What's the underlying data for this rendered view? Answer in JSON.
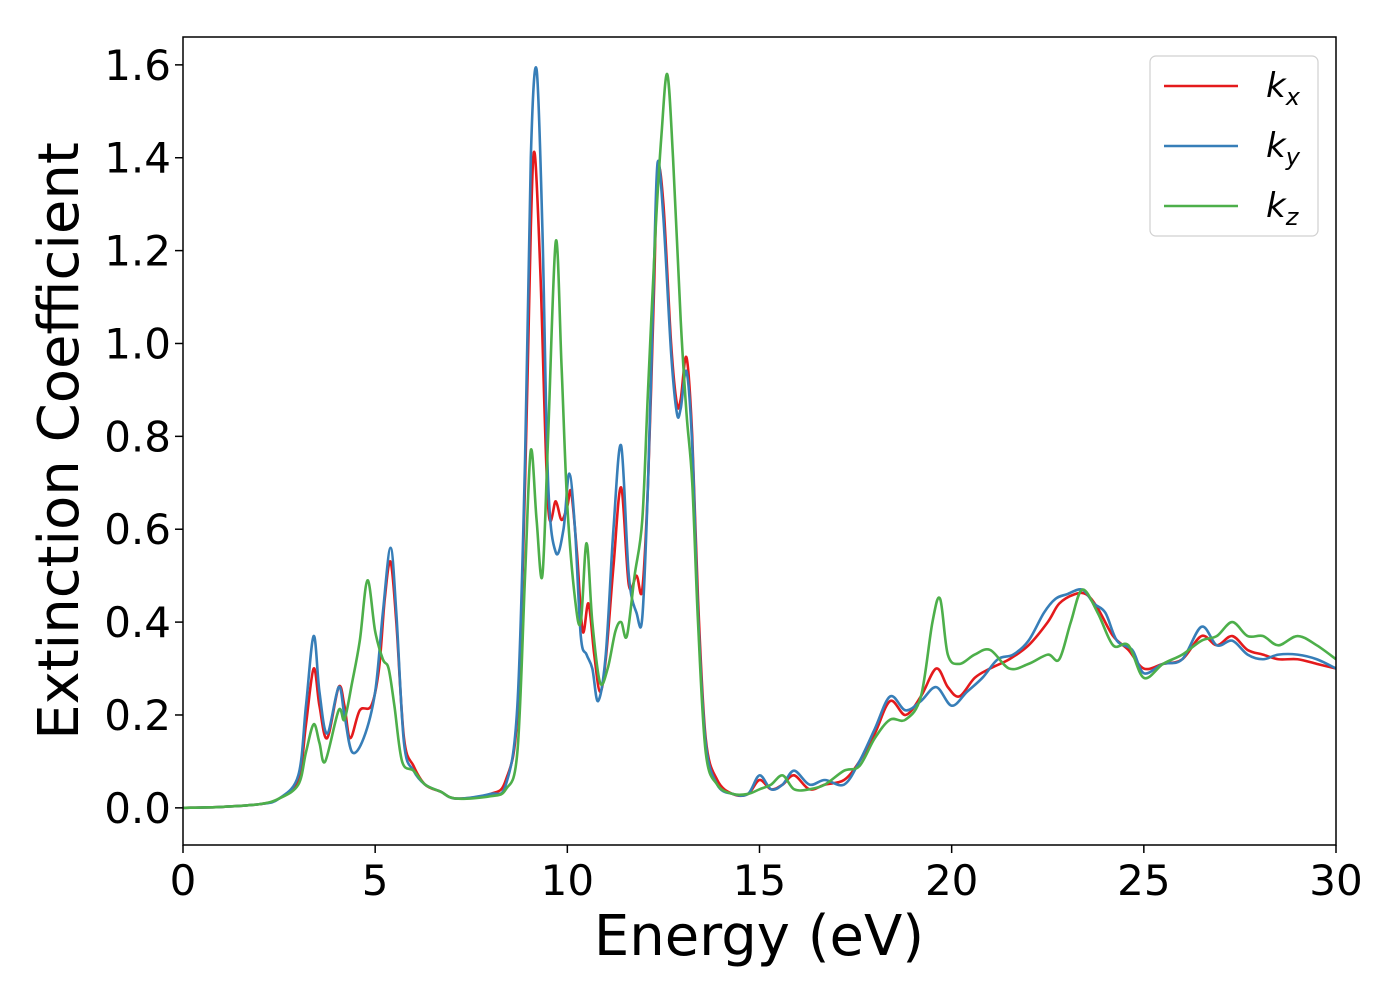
{
  "chart_data": {
    "type": "line",
    "title": "",
    "xlabel": "Energy (eV)",
    "ylabel": "Extinction Coefficient",
    "xlim": [
      0,
      30
    ],
    "ylim": [
      -0.08,
      1.66
    ],
    "xticks": [
      0,
      5,
      10,
      15,
      20,
      25,
      30
    ],
    "yticks": [
      0.0,
      0.2,
      0.4,
      0.6,
      0.8,
      1.0,
      1.2,
      1.4,
      1.6
    ],
    "xtick_labels": [
      "0",
      "5",
      "10",
      "15",
      "20",
      "25",
      "30"
    ],
    "ytick_labels": [
      "0.0",
      "0.2",
      "0.4",
      "0.6",
      "0.8",
      "1.0",
      "1.2",
      "1.4",
      "1.6"
    ],
    "grid": false,
    "legend_position": "top-right",
    "series": [
      {
        "name": "k",
        "subscript": "x",
        "color": "#e41a1c",
        "points": [
          [
            0,
            0
          ],
          [
            1,
            0.002
          ],
          [
            2,
            0.008
          ],
          [
            2.5,
            0.02
          ],
          [
            3,
            0.06
          ],
          [
            3.2,
            0.18
          ],
          [
            3.4,
            0.3
          ],
          [
            3.55,
            0.22
          ],
          [
            3.75,
            0.15
          ],
          [
            4.05,
            0.26
          ],
          [
            4.2,
            0.22
          ],
          [
            4.35,
            0.15
          ],
          [
            4.6,
            0.21
          ],
          [
            4.9,
            0.22
          ],
          [
            5.1,
            0.3
          ],
          [
            5.25,
            0.45
          ],
          [
            5.4,
            0.53
          ],
          [
            5.55,
            0.4
          ],
          [
            5.75,
            0.15
          ],
          [
            6.0,
            0.09
          ],
          [
            6.3,
            0.05
          ],
          [
            6.7,
            0.035
          ],
          [
            7.1,
            0.02
          ],
          [
            8.0,
            0.03
          ],
          [
            8.4,
            0.06
          ],
          [
            8.7,
            0.2
          ],
          [
            8.9,
            0.7
          ],
          [
            9.05,
            1.25
          ],
          [
            9.15,
            1.41
          ],
          [
            9.3,
            1.15
          ],
          [
            9.5,
            0.65
          ],
          [
            9.7,
            0.66
          ],
          [
            9.85,
            0.62
          ],
          [
            10.0,
            0.65
          ],
          [
            10.1,
            0.68
          ],
          [
            10.25,
            0.55
          ],
          [
            10.4,
            0.38
          ],
          [
            10.55,
            0.44
          ],
          [
            10.7,
            0.33
          ],
          [
            10.85,
            0.25
          ],
          [
            11.0,
            0.32
          ],
          [
            11.2,
            0.52
          ],
          [
            11.4,
            0.69
          ],
          [
            11.6,
            0.48
          ],
          [
            11.8,
            0.5
          ],
          [
            11.95,
            0.47
          ],
          [
            12.1,
            0.7
          ],
          [
            12.25,
            1.1
          ],
          [
            12.35,
            1.37
          ],
          [
            12.5,
            1.3
          ],
          [
            12.7,
            1.0
          ],
          [
            12.85,
            0.87
          ],
          [
            12.95,
            0.88
          ],
          [
            13.1,
            0.97
          ],
          [
            13.25,
            0.8
          ],
          [
            13.4,
            0.45
          ],
          [
            13.6,
            0.15
          ],
          [
            13.9,
            0.06
          ],
          [
            14.3,
            0.03
          ],
          [
            14.7,
            0.03
          ],
          [
            15.0,
            0.06
          ],
          [
            15.3,
            0.04
          ],
          [
            15.6,
            0.05
          ],
          [
            15.9,
            0.07
          ],
          [
            16.3,
            0.04
          ],
          [
            16.7,
            0.05
          ],
          [
            17.2,
            0.06
          ],
          [
            17.6,
            0.1
          ],
          [
            18.0,
            0.16
          ],
          [
            18.4,
            0.23
          ],
          [
            18.8,
            0.2
          ],
          [
            19.2,
            0.24
          ],
          [
            19.6,
            0.3
          ],
          [
            19.9,
            0.26
          ],
          [
            20.2,
            0.24
          ],
          [
            20.6,
            0.28
          ],
          [
            21.0,
            0.3
          ],
          [
            21.5,
            0.32
          ],
          [
            22.0,
            0.35
          ],
          [
            22.5,
            0.4
          ],
          [
            22.8,
            0.44
          ],
          [
            23.2,
            0.46
          ],
          [
            23.5,
            0.46
          ],
          [
            23.8,
            0.43
          ],
          [
            24.2,
            0.37
          ],
          [
            24.6,
            0.34
          ],
          [
            25.0,
            0.3
          ],
          [
            25.5,
            0.31
          ],
          [
            26.0,
            0.32
          ],
          [
            26.5,
            0.37
          ],
          [
            26.9,
            0.35
          ],
          [
            27.3,
            0.37
          ],
          [
            27.7,
            0.34
          ],
          [
            28.1,
            0.33
          ],
          [
            28.5,
            0.32
          ],
          [
            29.0,
            0.32
          ],
          [
            29.5,
            0.31
          ],
          [
            30.0,
            0.3
          ]
        ]
      },
      {
        "name": "k",
        "subscript": "y",
        "color": "#377eb8",
        "points": [
          [
            0,
            0
          ],
          [
            1,
            0.002
          ],
          [
            2,
            0.008
          ],
          [
            2.5,
            0.02
          ],
          [
            3,
            0.07
          ],
          [
            3.2,
            0.22
          ],
          [
            3.4,
            0.37
          ],
          [
            3.55,
            0.25
          ],
          [
            3.75,
            0.16
          ],
          [
            4.05,
            0.26
          ],
          [
            4.2,
            0.2
          ],
          [
            4.4,
            0.12
          ],
          [
            4.7,
            0.15
          ],
          [
            5.0,
            0.25
          ],
          [
            5.2,
            0.42
          ],
          [
            5.4,
            0.56
          ],
          [
            5.55,
            0.42
          ],
          [
            5.75,
            0.14
          ],
          [
            6.0,
            0.08
          ],
          [
            6.3,
            0.05
          ],
          [
            6.7,
            0.035
          ],
          [
            7.1,
            0.02
          ],
          [
            8.0,
            0.03
          ],
          [
            8.4,
            0.05
          ],
          [
            8.7,
            0.22
          ],
          [
            8.9,
            0.75
          ],
          [
            9.05,
            1.4
          ],
          [
            9.2,
            1.59
          ],
          [
            9.35,
            1.25
          ],
          [
            9.5,
            0.7
          ],
          [
            9.7,
            0.55
          ],
          [
            9.9,
            0.6
          ],
          [
            10.05,
            0.72
          ],
          [
            10.2,
            0.6
          ],
          [
            10.35,
            0.37
          ],
          [
            10.5,
            0.33
          ],
          [
            10.65,
            0.3
          ],
          [
            10.8,
            0.23
          ],
          [
            11.0,
            0.33
          ],
          [
            11.2,
            0.6
          ],
          [
            11.4,
            0.78
          ],
          [
            11.6,
            0.5
          ],
          [
            11.8,
            0.42
          ],
          [
            11.95,
            0.41
          ],
          [
            12.1,
            0.7
          ],
          [
            12.25,
            1.15
          ],
          [
            12.35,
            1.39
          ],
          [
            12.5,
            1.27
          ],
          [
            12.7,
            0.98
          ],
          [
            12.85,
            0.85
          ],
          [
            12.95,
            0.86
          ],
          [
            13.1,
            0.94
          ],
          [
            13.25,
            0.78
          ],
          [
            13.4,
            0.42
          ],
          [
            13.6,
            0.14
          ],
          [
            13.9,
            0.05
          ],
          [
            14.3,
            0.03
          ],
          [
            14.7,
            0.03
          ],
          [
            15.0,
            0.07
          ],
          [
            15.3,
            0.04
          ],
          [
            15.6,
            0.05
          ],
          [
            15.9,
            0.08
          ],
          [
            16.3,
            0.05
          ],
          [
            16.7,
            0.06
          ],
          [
            17.2,
            0.05
          ],
          [
            17.6,
            0.1
          ],
          [
            18.0,
            0.17
          ],
          [
            18.4,
            0.24
          ],
          [
            18.8,
            0.21
          ],
          [
            19.2,
            0.23
          ],
          [
            19.6,
            0.26
          ],
          [
            20.0,
            0.22
          ],
          [
            20.4,
            0.25
          ],
          [
            20.8,
            0.28
          ],
          [
            21.2,
            0.32
          ],
          [
            21.6,
            0.33
          ],
          [
            22.0,
            0.36
          ],
          [
            22.4,
            0.42
          ],
          [
            22.7,
            0.45
          ],
          [
            23.0,
            0.46
          ],
          [
            23.4,
            0.47
          ],
          [
            23.7,
            0.44
          ],
          [
            24.0,
            0.42
          ],
          [
            24.3,
            0.36
          ],
          [
            24.7,
            0.34
          ],
          [
            25.0,
            0.29
          ],
          [
            25.5,
            0.31
          ],
          [
            26.0,
            0.32
          ],
          [
            26.5,
            0.39
          ],
          [
            26.9,
            0.35
          ],
          [
            27.3,
            0.36
          ],
          [
            27.7,
            0.33
          ],
          [
            28.1,
            0.32
          ],
          [
            28.5,
            0.33
          ],
          [
            29.0,
            0.33
          ],
          [
            29.5,
            0.32
          ],
          [
            30.0,
            0.3
          ]
        ]
      },
      {
        "name": "k",
        "subscript": "z",
        "color": "#4daf4a",
        "points": [
          [
            0,
            0
          ],
          [
            1,
            0.002
          ],
          [
            2,
            0.008
          ],
          [
            2.5,
            0.02
          ],
          [
            3,
            0.05
          ],
          [
            3.2,
            0.12
          ],
          [
            3.4,
            0.18
          ],
          [
            3.55,
            0.14
          ],
          [
            3.7,
            0.1
          ],
          [
            4.05,
            0.21
          ],
          [
            4.2,
            0.19
          ],
          [
            4.4,
            0.27
          ],
          [
            4.6,
            0.36
          ],
          [
            4.8,
            0.49
          ],
          [
            5.0,
            0.38
          ],
          [
            5.2,
            0.32
          ],
          [
            5.35,
            0.3
          ],
          [
            5.5,
            0.22
          ],
          [
            5.7,
            0.1
          ],
          [
            6.0,
            0.08
          ],
          [
            6.3,
            0.05
          ],
          [
            6.7,
            0.035
          ],
          [
            7.1,
            0.02
          ],
          [
            8.0,
            0.025
          ],
          [
            8.4,
            0.04
          ],
          [
            8.7,
            0.12
          ],
          [
            8.9,
            0.5
          ],
          [
            9.05,
            0.77
          ],
          [
            9.2,
            0.62
          ],
          [
            9.35,
            0.5
          ],
          [
            9.5,
            0.8
          ],
          [
            9.7,
            1.22
          ],
          [
            9.85,
            0.95
          ],
          [
            10.0,
            0.65
          ],
          [
            10.2,
            0.45
          ],
          [
            10.35,
            0.4
          ],
          [
            10.5,
            0.57
          ],
          [
            10.65,
            0.4
          ],
          [
            10.85,
            0.27
          ],
          [
            11.05,
            0.3
          ],
          [
            11.25,
            0.38
          ],
          [
            11.4,
            0.4
          ],
          [
            11.55,
            0.37
          ],
          [
            11.75,
            0.5
          ],
          [
            11.95,
            0.62
          ],
          [
            12.1,
            0.9
          ],
          [
            12.3,
            1.25
          ],
          [
            12.45,
            1.45
          ],
          [
            12.6,
            1.58
          ],
          [
            12.75,
            1.4
          ],
          [
            12.95,
            1.05
          ],
          [
            13.1,
            0.85
          ],
          [
            13.25,
            0.7
          ],
          [
            13.4,
            0.4
          ],
          [
            13.6,
            0.12
          ],
          [
            13.9,
            0.05
          ],
          [
            14.3,
            0.03
          ],
          [
            14.7,
            0.03
          ],
          [
            15.0,
            0.04
          ],
          [
            15.3,
            0.05
          ],
          [
            15.6,
            0.07
          ],
          [
            15.9,
            0.04
          ],
          [
            16.3,
            0.04
          ],
          [
            16.7,
            0.05
          ],
          [
            17.2,
            0.08
          ],
          [
            17.6,
            0.09
          ],
          [
            18.0,
            0.15
          ],
          [
            18.4,
            0.19
          ],
          [
            18.8,
            0.19
          ],
          [
            19.2,
            0.24
          ],
          [
            19.5,
            0.4
          ],
          [
            19.7,
            0.45
          ],
          [
            19.9,
            0.33
          ],
          [
            20.2,
            0.31
          ],
          [
            20.6,
            0.33
          ],
          [
            21.0,
            0.34
          ],
          [
            21.5,
            0.3
          ],
          [
            22.0,
            0.31
          ],
          [
            22.5,
            0.33
          ],
          [
            22.8,
            0.32
          ],
          [
            23.1,
            0.4
          ],
          [
            23.4,
            0.47
          ],
          [
            23.8,
            0.42
          ],
          [
            24.2,
            0.35
          ],
          [
            24.6,
            0.35
          ],
          [
            25.0,
            0.28
          ],
          [
            25.5,
            0.31
          ],
          [
            26.0,
            0.33
          ],
          [
            26.5,
            0.36
          ],
          [
            26.9,
            0.37
          ],
          [
            27.3,
            0.4
          ],
          [
            27.7,
            0.37
          ],
          [
            28.1,
            0.37
          ],
          [
            28.5,
            0.35
          ],
          [
            29.0,
            0.37
          ],
          [
            29.5,
            0.35
          ],
          [
            30.0,
            0.32
          ]
        ]
      }
    ]
  }
}
